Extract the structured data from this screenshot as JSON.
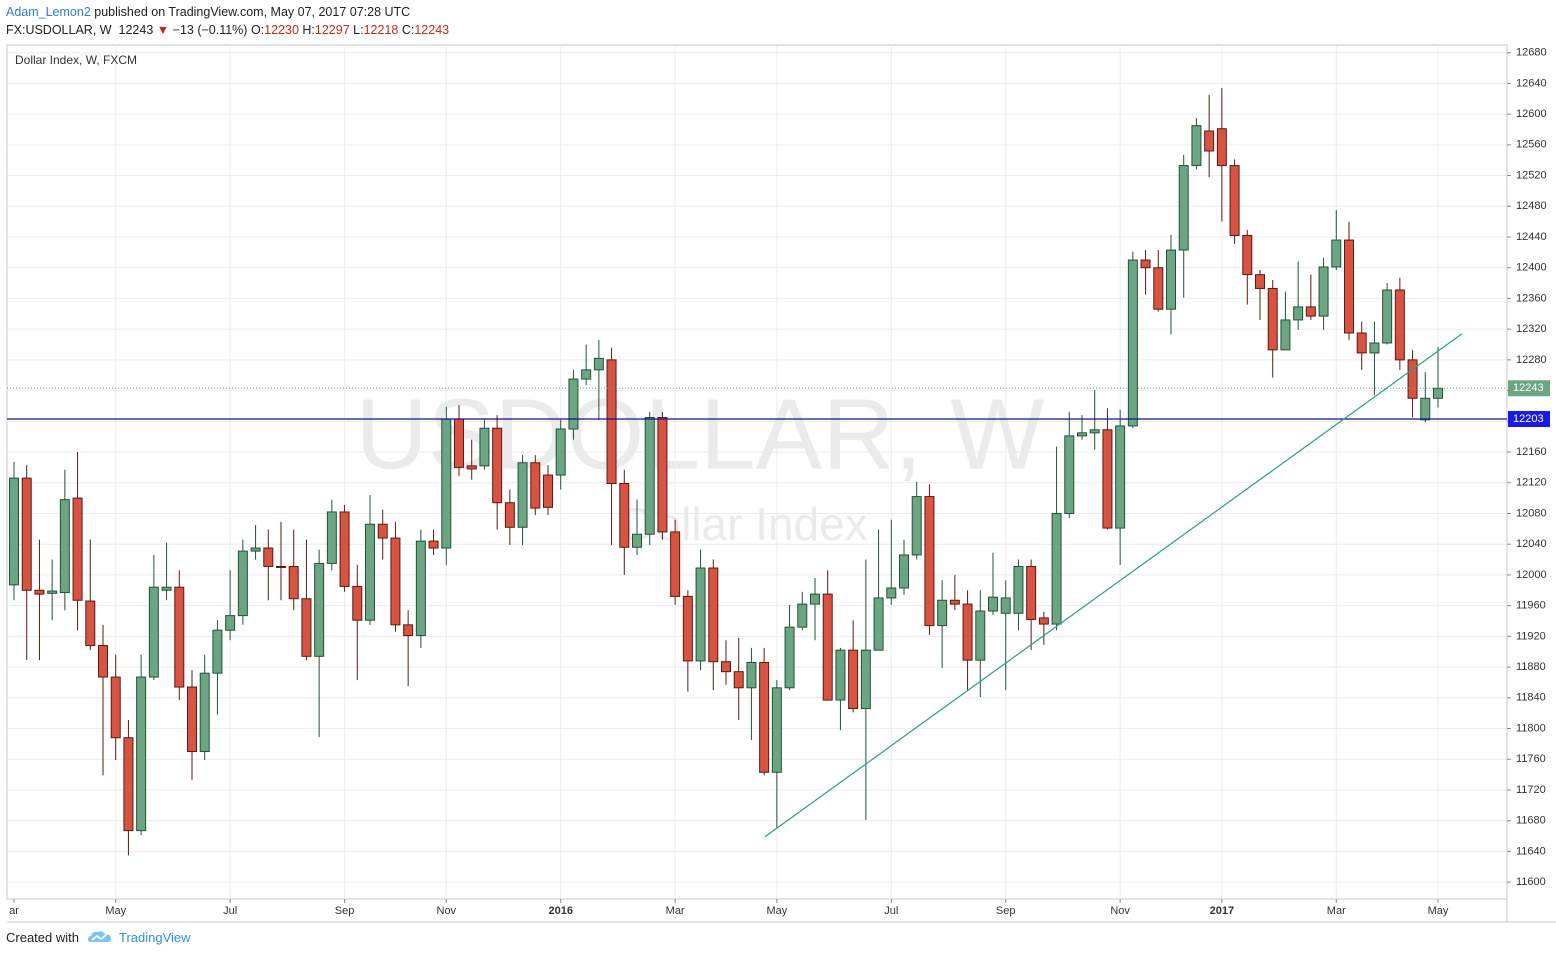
{
  "header": {
    "author": "Adam_Lemon2",
    "published": "published on TradingView.com, May 07, 2017 07:28 UTC",
    "symbol": "FX:USDOLLAR, W",
    "last": "12243",
    "arrow": "▼",
    "change": "−13 (−0.11%)",
    "open_label": "O:",
    "open": "12230",
    "high_label": "H:",
    "high": "12297",
    "low_label": "L:",
    "low": "12218",
    "close_label": "C:",
    "close": "12243"
  },
  "footer": {
    "created": "Created with",
    "brand": "TradingView"
  },
  "chart_data": {
    "type": "candlestick",
    "title": "Dollar Index, W, FXCM",
    "watermark": {
      "symbol": "USDOLLAR, W",
      "description": "Dollar Index"
    },
    "up_color": "#6ba583",
    "up_border": "#225437",
    "down_color": "#d75442",
    "down_border": "#5b1a13",
    "grid": true,
    "ylim": [
      11578,
      12690
    ],
    "yticks": [
      11600,
      11640,
      11680,
      11720,
      11760,
      11800,
      11840,
      11880,
      11920,
      11960,
      12000,
      12040,
      12080,
      12120,
      12160,
      12200,
      12240,
      12280,
      12320,
      12360,
      12400,
      12440,
      12480,
      12520,
      12560,
      12600,
      12640,
      12680
    ],
    "categories": [
      "ar",
      null,
      null,
      null,
      null,
      null,
      null,
      null,
      "May",
      null,
      null,
      null,
      null,
      null,
      null,
      null,
      null,
      "Jul",
      null,
      null,
      null,
      null,
      null,
      null,
      null,
      null,
      "Sep",
      null,
      null,
      null,
      null,
      null,
      null,
      null,
      "Nov",
      null,
      null,
      null,
      null,
      null,
      null,
      null,
      null,
      "2016",
      null,
      null,
      null,
      null,
      null,
      null,
      null,
      null,
      "Mar",
      null,
      null,
      null,
      null,
      null,
      null,
      null,
      "May",
      null,
      null,
      null,
      null,
      null,
      null,
      null,
      null,
      "Jul",
      null,
      null,
      null,
      null,
      null,
      null,
      null,
      null,
      "Sep",
      null,
      null,
      null,
      null,
      null,
      null,
      null,
      null,
      "Nov",
      null,
      null,
      null,
      null,
      null,
      null,
      null,
      "2017",
      null,
      null,
      null,
      null,
      null,
      null,
      null,
      null,
      "Mar",
      null,
      null,
      null,
      null,
      null,
      null,
      null,
      "May"
    ],
    "open": [
      11987,
      12126,
      11980,
      11976,
      11977,
      12100,
      11966,
      11908,
      11867,
      11788,
      11667,
      11867,
      11980,
      11984,
      11854,
      11770,
      11872,
      11928,
      11947,
      12031,
      12035,
      12011,
      12011,
      11969,
      11894,
      12015,
      12082,
      11985,
      11941,
      12066,
      12048,
      11935,
      11921,
      12044,
      12035,
      12203,
      12142,
      12142,
      12191,
      12094,
      12062,
      12146,
      12130,
      12130,
      12190,
      12255,
      12267,
      12280,
      12119,
      12036,
      12053,
      12205,
      12056,
      11972,
      11888,
      12009,
      11887,
      11874,
      11853,
      11886,
      11743,
      11853,
      11932,
      11962,
      11975,
      11837,
      11902,
      11826,
      11902,
      11970,
      11983,
      12026,
      12102,
      11934,
      11967,
      11962,
      11889,
      11953,
      11950,
      11950,
      12011,
      11944,
      11936,
      12080,
      12181,
      12185,
      12189,
      12061,
      12194,
      12410,
      12400,
      12346,
      12423,
      12533,
      12578,
      12581,
      12533,
      12442,
      12391,
      12373,
      12293,
      12332,
      12349,
      12337,
      12401,
      12436,
      12315,
      12289,
      12302,
      12371,
      12280,
      12202,
      12230
    ],
    "high": [
      12147,
      12143,
      12046,
      12020,
      12137,
      12160,
      12046,
      11935,
      11896,
      11811,
      11896,
      12026,
      12042,
      12006,
      11876,
      11896,
      11941,
      12006,
      12046,
      12065,
      12059,
      12069,
      12059,
      12046,
      12033,
      12098,
      12091,
      12013,
      12104,
      12085,
      12069,
      11954,
      12059,
      12059,
      12219,
      12221,
      12176,
      12202,
      12208,
      12111,
      12156,
      12156,
      12143,
      12202,
      12267,
      12300,
      12306,
      12296,
      12137,
      12098,
      12212,
      12212,
      12072,
      11980,
      12033,
      12020,
      11915,
      11918,
      11905,
      11905,
      11863,
      11961,
      11978,
      11996,
      12006,
      11905,
      11941,
      12020,
      12059,
      12072,
      12046,
      12121,
      12118,
      11993,
      12000,
      11980,
      11980,
      12029,
      11993,
      12020,
      12020,
      11952,
      12167,
      12212,
      12208,
      12241,
      12217,
      12215,
      12421,
      12423,
      12423,
      12443,
      12547,
      12595,
      12625,
      12634,
      12541,
      12449,
      12397,
      12384,
      12369,
      12408,
      12391,
      12413,
      12475,
      12460,
      12330,
      12330,
      12380,
      12387,
      12293,
      12264,
      12297
    ],
    "low": [
      11967,
      11889,
      11889,
      11941,
      11954,
      11928,
      11902,
      11739,
      11759,
      11635,
      11661,
      11863,
      11967,
      11837,
      11733,
      11759,
      11818,
      11915,
      11935,
      12020,
      11967,
      11967,
      11954,
      11889,
      11789,
      12006,
      11978,
      11863,
      11935,
      12020,
      11926,
      11855,
      11905,
      12026,
      12013,
      12129,
      12124,
      12137,
      12059,
      12039,
      12039,
      12078,
      12078,
      12111,
      12176,
      12247,
      12202,
      12039,
      12000,
      12026,
      12039,
      12046,
      11961,
      11848,
      11876,
      11850,
      11857,
      11811,
      11785,
      11739,
      11670,
      11850,
      11928,
      11915,
      11837,
      11798,
      11821,
      11681,
      11902,
      11961,
      11974,
      12020,
      11922,
      11879,
      11954,
      11850,
      11841,
      11948,
      11850,
      11928,
      11902,
      11909,
      11928,
      12074,
      12176,
      12163,
      12059,
      12013,
      12191,
      12365,
      12343,
      12313,
      12361,
      12528,
      12518,
      12460,
      12431,
      12352,
      12332,
      12257,
      12293,
      12319,
      12332,
      12319,
      12397,
      12306,
      12267,
      12234,
      12300,
      12267,
      12205,
      12199,
      12218
    ],
    "close": [
      12126,
      11980,
      11975,
      11979,
      12098,
      11967,
      11908,
      11867,
      11788,
      11667,
      11867,
      11984,
      11984,
      11854,
      11770,
      11872,
      11928,
      11947,
      12031,
      12035,
      12011,
      12010,
      11969,
      11894,
      12015,
      12082,
      11985,
      11941,
      12066,
      12048,
      11935,
      11921,
      12044,
      12035,
      12203,
      12140,
      12138,
      12191,
      12094,
      12062,
      12146,
      12087,
      12088,
      12190,
      12255,
      12267,
      12282,
      12119,
      12036,
      12053,
      12205,
      12056,
      11972,
      11888,
      12009,
      11887,
      11874,
      11853,
      11886,
      11743,
      11853,
      11932,
      11962,
      11975,
      11837,
      11902,
      11826,
      11902,
      11970,
      11983,
      12026,
      12102,
      11934,
      11967,
      11962,
      11889,
      11953,
      11971,
      11970,
      12011,
      11942,
      11936,
      12080,
      12181,
      12185,
      12189,
      12061,
      12194,
      12410,
      12400,
      12346,
      12423,
      12533,
      12585,
      12552,
      12533,
      12442,
      12391,
      12373,
      12293,
      12332,
      12349,
      12337,
      12401,
      12436,
      12315,
      12289,
      12302,
      12371,
      12280,
      12230,
      12230,
      12243
    ],
    "hline": {
      "value": 12203,
      "color": "#10108a",
      "label_color": "#1a1ae6"
    },
    "trend_line": {
      "start": 11659,
      "end": 12314,
      "color": "#2a9d8f"
    }
  }
}
